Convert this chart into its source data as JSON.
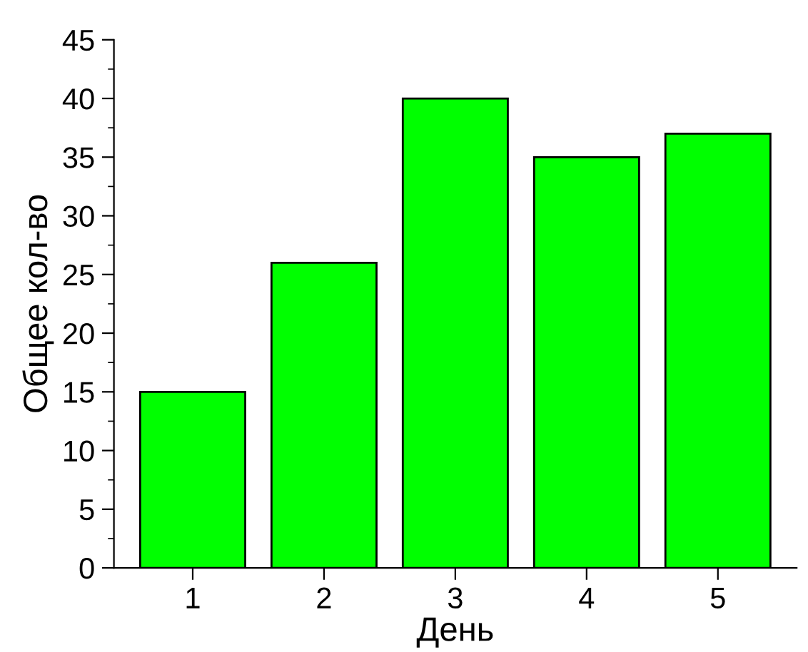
{
  "chart_data": {
    "type": "bar",
    "xlabel": "День",
    "ylabel": "Общее кол-во",
    "categories": [
      "1",
      "2",
      "3",
      "4",
      "5"
    ],
    "values": [
      15,
      26,
      40,
      35,
      37
    ],
    "color": "#00ff00",
    "ylim": [
      0,
      45
    ],
    "yticks": [
      0,
      5,
      10,
      15,
      20,
      25,
      30,
      35,
      40,
      45
    ],
    "grid": false,
    "legend": false
  }
}
